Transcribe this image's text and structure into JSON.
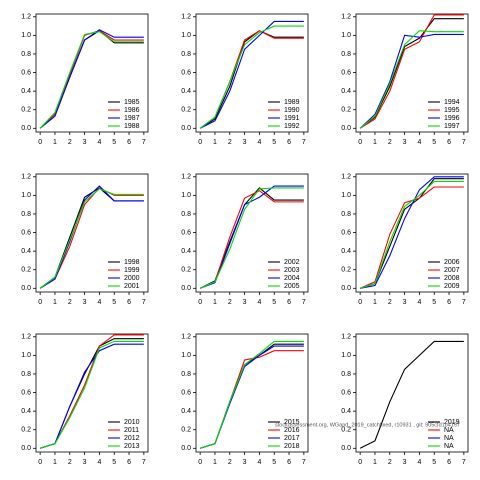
{
  "footnote": "stockassessment.org, WGand_2019_catchfixed, r10931 , git: 905cfd1b4157",
  "chart_data": [
    {
      "type": "line",
      "x": [
        0,
        1,
        2,
        3,
        4,
        5,
        6,
        7
      ],
      "xticks": [
        0,
        1,
        2,
        3,
        4,
        5,
        6,
        7
      ],
      "xlim": [
        -0.28,
        7.28
      ],
      "ylim": [
        -0.04,
        1.23
      ],
      "yticks": [
        {
          "value": 0,
          "label": "0.0"
        },
        {
          "value": 0.2,
          "label": "0.2"
        },
        {
          "value": 0.4,
          "label": "0.4"
        },
        {
          "value": 0.6,
          "label": "0.6"
        },
        {
          "value": 0.8,
          "label": "0.8"
        },
        {
          "value": 1,
          "label": "1.0"
        },
        {
          "value": 1.2,
          "label": "1.2"
        }
      ],
      "legend": "bottom right",
      "series": [
        {
          "name": "1985",
          "color": "#000000",
          "values": [
            0,
            0.15,
            0.55,
            0.95,
            1.05,
            0.92,
            0.92,
            0.92
          ]
        },
        {
          "name": "1986",
          "color": "#ff0000",
          "values": [
            0,
            0.15,
            0.58,
            1.0,
            1.05,
            0.95,
            0.95,
            0.95
          ]
        },
        {
          "name": "1987",
          "color": "#0000ff",
          "values": [
            0,
            0.13,
            0.55,
            0.95,
            1.06,
            0.98,
            0.98,
            0.98
          ]
        },
        {
          "name": "1988",
          "color": "#00dd00",
          "values": [
            0,
            0.17,
            0.6,
            1.01,
            1.04,
            0.93,
            0.93,
            0.93
          ]
        }
      ]
    },
    {
      "type": "line",
      "x": [
        0,
        1,
        2,
        3,
        4,
        5,
        6,
        7
      ],
      "xticks": [
        0,
        1,
        2,
        3,
        4,
        5,
        6,
        7
      ],
      "xlim": [
        -0.28,
        7.28
      ],
      "ylim": [
        -0.04,
        1.23
      ],
      "yticks": [
        {
          "value": 0,
          "label": "0.0"
        },
        {
          "value": 0.2,
          "label": "0.2"
        },
        {
          "value": 0.4,
          "label": "0.4"
        },
        {
          "value": 0.6,
          "label": "0.6"
        },
        {
          "value": 0.8,
          "label": "0.8"
        },
        {
          "value": 1,
          "label": "1.0"
        },
        {
          "value": 1.2,
          "label": "1.2"
        }
      ],
      "legend": "bottom right",
      "series": [
        {
          "name": "1989",
          "color": "#000000",
          "values": [
            0,
            0.1,
            0.45,
            0.93,
            1.05,
            0.98,
            0.98,
            0.98
          ]
        },
        {
          "name": "1990",
          "color": "#ff0000",
          "values": [
            0,
            0.12,
            0.5,
            0.95,
            1.05,
            0.97,
            0.97,
            0.97
          ]
        },
        {
          "name": "1991",
          "color": "#0000ff",
          "values": [
            0,
            0.08,
            0.4,
            0.85,
            1.0,
            1.15,
            1.15,
            1.15
          ]
        },
        {
          "name": "1992",
          "color": "#00dd00",
          "values": [
            0,
            0.12,
            0.5,
            0.9,
            1.03,
            1.1,
            1.1,
            1.1
          ]
        }
      ]
    },
    {
      "type": "line",
      "x": [
        0,
        1,
        2,
        3,
        4,
        5,
        6,
        7
      ],
      "xticks": [
        0,
        1,
        2,
        3,
        4,
        5,
        6,
        7
      ],
      "xlim": [
        -0.28,
        7.28
      ],
      "ylim": [
        -0.04,
        1.23
      ],
      "yticks": [
        {
          "value": 0,
          "label": "0.0"
        },
        {
          "value": 0.2,
          "label": "0.2"
        },
        {
          "value": 0.4,
          "label": "0.4"
        },
        {
          "value": 0.6,
          "label": "0.6"
        },
        {
          "value": 0.8,
          "label": "0.8"
        },
        {
          "value": 1,
          "label": "1.0"
        },
        {
          "value": 1.2,
          "label": "1.2"
        }
      ],
      "legend": "bottom right",
      "series": [
        {
          "name": "1994",
          "color": "#000000",
          "values": [
            0,
            0.12,
            0.45,
            0.88,
            0.97,
            1.18,
            1.18,
            1.18
          ]
        },
        {
          "name": "1995",
          "color": "#ff0000",
          "values": [
            0,
            0.1,
            0.4,
            0.85,
            0.93,
            1.22,
            1.22,
            1.22
          ]
        },
        {
          "name": "1996",
          "color": "#0000ff",
          "values": [
            0,
            0.15,
            0.5,
            1.0,
            0.98,
            1.01,
            1.01,
            1.01
          ]
        },
        {
          "name": "1997",
          "color": "#00dd00",
          "values": [
            0,
            0.13,
            0.48,
            0.9,
            1.05,
            1.04,
            1.04,
            1.04
          ]
        }
      ]
    },
    {
      "type": "line",
      "x": [
        0,
        1,
        2,
        3,
        4,
        5,
        6,
        7
      ],
      "xticks": [
        0,
        1,
        2,
        3,
        4,
        5,
        6,
        7
      ],
      "xlim": [
        -0.28,
        7.28
      ],
      "ylim": [
        -0.04,
        1.23
      ],
      "yticks": [
        {
          "value": 0,
          "label": "0.0"
        },
        {
          "value": 0.2,
          "label": "0.2"
        },
        {
          "value": 0.4,
          "label": "0.4"
        },
        {
          "value": 0.6,
          "label": "0.6"
        },
        {
          "value": 0.8,
          "label": "0.8"
        },
        {
          "value": 1,
          "label": "1.0"
        },
        {
          "value": 1.2,
          "label": "1.2"
        }
      ],
      "legend": "bottom right",
      "series": [
        {
          "name": "1998",
          "color": "#000000",
          "values": [
            0,
            0.12,
            0.55,
            0.98,
            1.08,
            0.94,
            0.94,
            0.94
          ]
        },
        {
          "name": "1999",
          "color": "#ff0000",
          "values": [
            0,
            0.1,
            0.45,
            0.9,
            1.08,
            1.0,
            1.0,
            1.0
          ]
        },
        {
          "name": "2000",
          "color": "#0000ff",
          "values": [
            0,
            0.1,
            0.5,
            0.95,
            1.1,
            0.94,
            0.94,
            0.94
          ]
        },
        {
          "name": "2001",
          "color": "#00dd00",
          "values": [
            0,
            0.12,
            0.52,
            0.93,
            1.07,
            1.01,
            1.01,
            1.01
          ]
        }
      ]
    },
    {
      "type": "line",
      "x": [
        0,
        1,
        2,
        3,
        4,
        5,
        6,
        7
      ],
      "xticks": [
        0,
        1,
        2,
        3,
        4,
        5,
        6,
        7
      ],
      "xlim": [
        -0.28,
        7.28
      ],
      "ylim": [
        -0.04,
        1.23
      ],
      "yticks": [
        {
          "value": 0,
          "label": "0.0"
        },
        {
          "value": 0.2,
          "label": "0.2"
        },
        {
          "value": 0.4,
          "label": "0.4"
        },
        {
          "value": 0.6,
          "label": "0.6"
        },
        {
          "value": 0.8,
          "label": "0.8"
        },
        {
          "value": 1,
          "label": "1.0"
        },
        {
          "value": 1.2,
          "label": "1.2"
        }
      ],
      "legend": "bottom right",
      "series": [
        {
          "name": "2002",
          "color": "#000000",
          "values": [
            0,
            0.08,
            0.5,
            0.9,
            1.08,
            0.95,
            0.95,
            0.95
          ]
        },
        {
          "name": "2003",
          "color": "#ff0000",
          "values": [
            0,
            0.07,
            0.55,
            0.97,
            1.05,
            0.93,
            0.93,
            0.93
          ]
        },
        {
          "name": "2004",
          "color": "#0000ff",
          "values": [
            0,
            0.06,
            0.48,
            0.9,
            0.98,
            1.1,
            1.1,
            1.1
          ]
        },
        {
          "name": "2005",
          "color": "#00dd00",
          "values": [
            0,
            0.07,
            0.42,
            0.85,
            1.07,
            1.08,
            1.08,
            1.08
          ]
        }
      ]
    },
    {
      "type": "line",
      "x": [
        0,
        1,
        2,
        3,
        4,
        5,
        6,
        7
      ],
      "xticks": [
        0,
        1,
        2,
        3,
        4,
        5,
        6,
        7
      ],
      "xlim": [
        -0.28,
        7.28
      ],
      "ylim": [
        -0.04,
        1.23
      ],
      "yticks": [
        {
          "value": 0,
          "label": "0.0"
        },
        {
          "value": 0.2,
          "label": "0.2"
        },
        {
          "value": 0.4,
          "label": "0.4"
        },
        {
          "value": 0.6,
          "label": "0.6"
        },
        {
          "value": 0.8,
          "label": "0.8"
        },
        {
          "value": 1,
          "label": "1.0"
        },
        {
          "value": 1.2,
          "label": "1.2"
        }
      ],
      "legend": "bottom right",
      "series": [
        {
          "name": "2006",
          "color": "#000000",
          "values": [
            0,
            0.05,
            0.45,
            0.85,
            0.97,
            1.18,
            1.18,
            1.18
          ]
        },
        {
          "name": "2007",
          "color": "#ff0000",
          "values": [
            0,
            0.07,
            0.58,
            0.92,
            0.97,
            1.09,
            1.09,
            1.09
          ]
        },
        {
          "name": "2008",
          "color": "#0000ff",
          "values": [
            0,
            0.03,
            0.35,
            0.75,
            1.06,
            1.2,
            1.2,
            1.2
          ]
        },
        {
          "name": "2009",
          "color": "#00dd00",
          "values": [
            0,
            0.05,
            0.5,
            0.88,
            1.0,
            1.15,
            1.15,
            1.15
          ]
        }
      ]
    },
    {
      "type": "line",
      "x": [
        0,
        1,
        2,
        3,
        4,
        5,
        6,
        7
      ],
      "xticks": [
        0,
        1,
        2,
        3,
        4,
        5,
        6,
        7
      ],
      "xlim": [
        -0.28,
        7.28
      ],
      "ylim": [
        -0.04,
        1.23
      ],
      "yticks": [
        {
          "value": 0,
          "label": "0.0"
        },
        {
          "value": 0.2,
          "label": "0.2"
        },
        {
          "value": 0.4,
          "label": "0.4"
        },
        {
          "value": 0.6,
          "label": "0.6"
        },
        {
          "value": 0.8,
          "label": "0.8"
        },
        {
          "value": 1,
          "label": "1.0"
        },
        {
          "value": 1.2,
          "label": "1.2"
        }
      ],
      "legend": "bottom right",
      "series": [
        {
          "name": "2010",
          "color": "#000000",
          "values": [
            0,
            0.05,
            0.45,
            0.8,
            1.1,
            1.18,
            1.18,
            1.18
          ]
        },
        {
          "name": "2011",
          "color": "#ff0000",
          "values": [
            0,
            0.05,
            0.35,
            0.68,
            1.1,
            1.22,
            1.22,
            1.22
          ]
        },
        {
          "name": "2012",
          "color": "#0000ff",
          "values": [
            0,
            0.05,
            0.45,
            0.82,
            1.05,
            1.12,
            1.12,
            1.12
          ]
        },
        {
          "name": "2013",
          "color": "#00dd00",
          "values": [
            0,
            0.05,
            0.33,
            0.65,
            1.08,
            1.15,
            1.15,
            1.15
          ]
        }
      ]
    },
    {
      "type": "line",
      "x": [
        0,
        1,
        2,
        3,
        4,
        5,
        6,
        7
      ],
      "xticks": [
        0,
        1,
        2,
        3,
        4,
        5,
        6,
        7
      ],
      "xlim": [
        -0.28,
        7.28
      ],
      "ylim": [
        -0.04,
        1.23
      ],
      "yticks": [
        {
          "value": 0,
          "label": "0.0"
        },
        {
          "value": 0.2,
          "label": "0.2"
        },
        {
          "value": 0.4,
          "label": "0.4"
        },
        {
          "value": 0.6,
          "label": "0.6"
        },
        {
          "value": 0.8,
          "label": "0.8"
        },
        {
          "value": 1,
          "label": "1.0"
        },
        {
          "value": 1.2,
          "label": "1.2"
        }
      ],
      "legend": "bottom right",
      "series": [
        {
          "name": "2015",
          "color": "#000000",
          "values": [
            0,
            0.05,
            0.5,
            0.9,
            1.0,
            1.12,
            1.12,
            1.12
          ]
        },
        {
          "name": "2016",
          "color": "#ff0000",
          "values": [
            0,
            0.05,
            0.5,
            0.95,
            0.98,
            1.05,
            1.05,
            1.05
          ]
        },
        {
          "name": "2017",
          "color": "#0000ff",
          "values": [
            0,
            0.05,
            0.48,
            0.88,
            1.0,
            1.1,
            1.1,
            1.1
          ]
        },
        {
          "name": "2018",
          "color": "#00dd00",
          "values": [
            0,
            0.05,
            0.5,
            0.9,
            1.02,
            1.15,
            1.15,
            1.15
          ]
        }
      ]
    },
    {
      "type": "line",
      "x": [
        0,
        1,
        2,
        3,
        4,
        5,
        6,
        7
      ],
      "xticks": [
        0,
        1,
        2,
        3,
        4,
        5,
        6,
        7
      ],
      "xlim": [
        -0.28,
        7.28
      ],
      "ylim": [
        -0.04,
        1.23
      ],
      "yticks": [
        {
          "value": 0,
          "label": "0.0"
        },
        {
          "value": 0.2,
          "label": "0.2"
        },
        {
          "value": 0.4,
          "label": "0.4"
        },
        {
          "value": 0.6,
          "label": "0.6"
        },
        {
          "value": 0.8,
          "label": "0.8"
        },
        {
          "value": 1,
          "label": "1.0"
        },
        {
          "value": 1.2,
          "label": "1.2"
        }
      ],
      "legend": "bottom right",
      "series": [
        {
          "name": "2019",
          "color": "#000000",
          "values": [
            0,
            0.08,
            0.5,
            0.85,
            1.0,
            1.15,
            1.15,
            1.15
          ]
        },
        {
          "name": "NA",
          "color": "#ff0000",
          "values": [
            null,
            null,
            null,
            null,
            null,
            null,
            null,
            null
          ]
        },
        {
          "name": "NA",
          "color": "#0000ff",
          "values": [
            null,
            null,
            null,
            null,
            null,
            null,
            null,
            null
          ]
        },
        {
          "name": "NA",
          "color": "#00dd00",
          "values": [
            null,
            null,
            null,
            null,
            null,
            null,
            null,
            null
          ]
        }
      ]
    }
  ]
}
